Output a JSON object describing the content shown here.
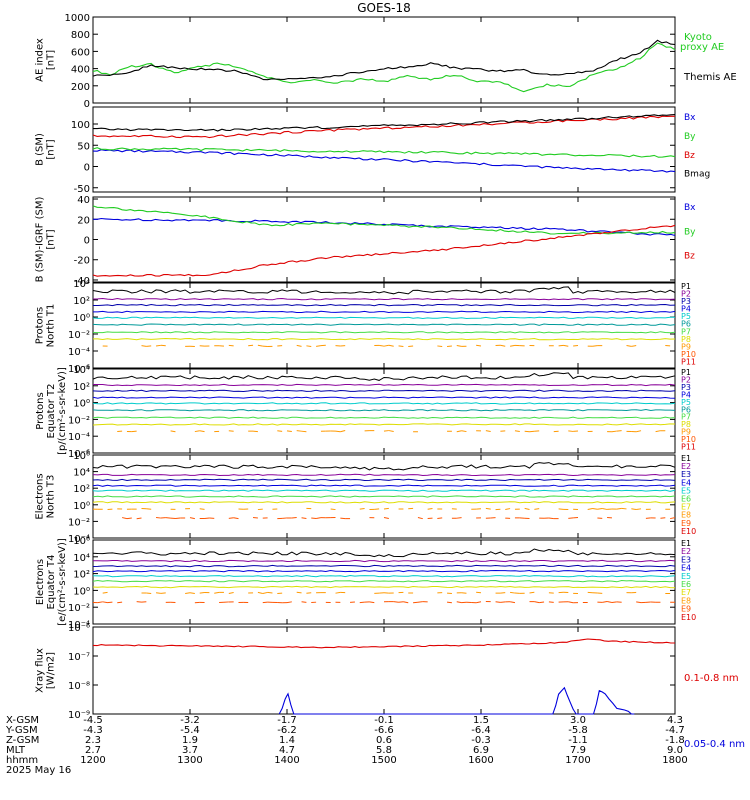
{
  "title": "GOES-18",
  "x_ticks": [
    "1200",
    "1300",
    "1400",
    "1500",
    "1600",
    "1700",
    "1800"
  ],
  "orbit_table": {
    "rows": [
      {
        "label": "X-GSM",
        "values": [
          "-4.5",
          "-3.2",
          "-1.7",
          "-0.1",
          "1.5",
          "3.0",
          "4.3"
        ]
      },
      {
        "label": "Y-GSM",
        "values": [
          "-4.3",
          "-5.4",
          "-6.2",
          "-6.6",
          "-6.4",
          "-5.8",
          "-4.7"
        ]
      },
      {
        "label": "Z-GSM",
        "values": [
          "2.3",
          "1.9",
          "1.4",
          "0.6",
          "-0.3",
          "-1.1",
          "-1.8"
        ]
      },
      {
        "label": "MLT",
        "values": [
          "2.7",
          "3.7",
          "4.7",
          "5.8",
          "6.9",
          "7.9",
          "9.0"
        ]
      },
      {
        "label": "hhmm",
        "values": [
          "1200",
          "1300",
          "1400",
          "1500",
          "1600",
          "1700",
          "1800"
        ]
      }
    ],
    "date": "2025 May 16"
  },
  "colors": {
    "black": "#000000",
    "blue": "#0000dd",
    "green": "#22cc22",
    "red": "#dd0000",
    "purple": "#880099",
    "navy": "#0000aa",
    "cyan": "#00cccc",
    "teal": "#009999",
    "lime": "#44dd44",
    "yellow": "#dddd00",
    "orange": "#ff9900",
    "orangered": "#ff5500"
  },
  "chart_data": [
    {
      "id": "ae",
      "type": "line",
      "ylabel": [
        "AE index",
        "[nT]"
      ],
      "y_ticks": [
        "0",
        "200",
        "400",
        "600",
        "800",
        "1000"
      ],
      "ylim": [
        0,
        1000
      ],
      "series": [
        {
          "name": "Kyoto proxy AE",
          "color": "#22cc22",
          "points": [
            [
              0,
              380
            ],
            [
              0.03,
              330
            ],
            [
              0.06,
              420
            ],
            [
              0.1,
              450
            ],
            [
              0.14,
              350
            ],
            [
              0.18,
              420
            ],
            [
              0.22,
              460
            ],
            [
              0.26,
              390
            ],
            [
              0.3,
              300
            ],
            [
              0.34,
              230
            ],
            [
              0.38,
              270
            ],
            [
              0.42,
              230
            ],
            [
              0.46,
              280
            ],
            [
              0.5,
              250
            ],
            [
              0.54,
              310
            ],
            [
              0.58,
              270
            ],
            [
              0.62,
              330
            ],
            [
              0.66,
              250
            ],
            [
              0.7,
              250
            ],
            [
              0.74,
              130
            ],
            [
              0.78,
              210
            ],
            [
              0.82,
              200
            ],
            [
              0.86,
              330
            ],
            [
              0.9,
              400
            ],
            [
              0.94,
              520
            ],
            [
              0.97,
              700
            ],
            [
              1.0,
              620
            ]
          ]
        },
        {
          "name": "Themis AE",
          "color": "#000000",
          "points": [
            [
              0,
              320
            ],
            [
              0.05,
              330
            ],
            [
              0.1,
              440
            ],
            [
              0.15,
              400
            ],
            [
              0.2,
              390
            ],
            [
              0.25,
              370
            ],
            [
              0.3,
              270
            ],
            [
              0.35,
              280
            ],
            [
              0.4,
              300
            ],
            [
              0.45,
              350
            ],
            [
              0.5,
              400
            ],
            [
              0.55,
              420
            ],
            [
              0.58,
              460
            ],
            [
              0.62,
              410
            ],
            [
              0.66,
              390
            ],
            [
              0.7,
              370
            ],
            [
              0.74,
              380
            ],
            [
              0.78,
              330
            ],
            [
              0.82,
              340
            ],
            [
              0.86,
              380
            ],
            [
              0.9,
              500
            ],
            [
              0.94,
              580
            ],
            [
              0.97,
              720
            ],
            [
              1.0,
              680
            ]
          ]
        }
      ]
    },
    {
      "id": "bsm",
      "type": "line",
      "ylabel": [
        "B (SM)",
        "[nT]"
      ],
      "y_ticks": [
        "-50",
        "0",
        "50",
        "100"
      ],
      "ylim": [
        -60,
        140
      ],
      "series": [
        {
          "name": "Bx",
          "color": "#0000dd",
          "points": [
            [
              0,
              38
            ],
            [
              0.2,
              33
            ],
            [
              0.4,
              22
            ],
            [
              0.6,
              10
            ],
            [
              0.8,
              -3
            ],
            [
              1.0,
              -12
            ]
          ]
        },
        {
          "name": "By",
          "color": "#22cc22",
          "points": [
            [
              0,
              42
            ],
            [
              0.2,
              40
            ],
            [
              0.4,
              36
            ],
            [
              0.6,
              33
            ],
            [
              0.8,
              28
            ],
            [
              1.0,
              23
            ]
          ]
        },
        {
          "name": "Bz",
          "color": "#dd0000",
          "points": [
            [
              0,
              72
            ],
            [
              0.2,
              70
            ],
            [
              0.4,
              85
            ],
            [
              0.6,
              95
            ],
            [
              0.8,
              107
            ],
            [
              1.0,
              118
            ]
          ]
        },
        {
          "name": "Bmag",
          "color": "#000000",
          "points": [
            [
              0,
              88
            ],
            [
              0.2,
              85
            ],
            [
              0.4,
              92
            ],
            [
              0.6,
              100
            ],
            [
              0.8,
              110
            ],
            [
              1.0,
              122
            ]
          ]
        }
      ]
    },
    {
      "id": "bsmigrf",
      "type": "line",
      "ylabel": [
        "B (SM)-IGRF (SM)",
        "[nT]"
      ],
      "y_ticks": [
        "-40",
        "-20",
        "0",
        "20",
        "40"
      ],
      "ylim": [
        -42,
        42
      ],
      "series": [
        {
          "name": "Bx",
          "color": "#0000dd",
          "points": [
            [
              0,
              20
            ],
            [
              0.2,
              19
            ],
            [
              0.4,
              17
            ],
            [
              0.6,
              13
            ],
            [
              0.8,
              10
            ],
            [
              1.0,
              4
            ]
          ]
        },
        {
          "name": "By",
          "color": "#22cc22",
          "points": [
            [
              0,
              33
            ],
            [
              0.2,
              22
            ],
            [
              0.3,
              14
            ],
            [
              0.4,
              16
            ],
            [
              0.6,
              12
            ],
            [
              0.8,
              6
            ],
            [
              1.0,
              7
            ]
          ]
        },
        {
          "name": "Bz",
          "color": "#dd0000",
          "points": [
            [
              0,
              -36
            ],
            [
              0.2,
              -35
            ],
            [
              0.3,
              -25
            ],
            [
              0.4,
              -18
            ],
            [
              0.6,
              -10
            ],
            [
              0.8,
              2
            ],
            [
              1.0,
              14
            ]
          ]
        }
      ]
    },
    {
      "id": "pn",
      "type": "line",
      "log": true,
      "ylabel": [
        "Protons",
        "North T1"
      ],
      "y_ticks": [
        "10⁻⁶",
        "10⁻⁴",
        "10⁻²",
        "10⁰",
        "10²",
        "10⁴"
      ],
      "ylim_exp": [
        -6,
        4
      ],
      "labels": [
        "P1",
        "P2",
        "P3",
        "P4",
        "P5",
        "P6",
        "P7",
        "P8",
        "P9",
        "P10",
        "P11"
      ],
      "levels_exp": [
        3.0,
        2.1,
        1.4,
        0.6,
        -0.1,
        -0.9,
        -1.8,
        -2.6,
        -3.4,
        null,
        null
      ],
      "label_colors": [
        "#000000",
        "#880099",
        "#0000aa",
        "#0000dd",
        "#00cccc",
        "#009999",
        "#44dd44",
        "#dddd00",
        "#ff9900",
        "#ff5500",
        "#dd0000"
      ]
    },
    {
      "id": "pe",
      "type": "line",
      "log": true,
      "ylabel": [
        "Protons",
        "Equator T2",
        "[p/(cm²-s-sr-keV)]"
      ],
      "y_ticks": [
        "10⁻⁶",
        "10⁻⁴",
        "10⁻²",
        "10⁰",
        "10²",
        "10⁴"
      ],
      "ylim_exp": [
        -6,
        4
      ],
      "labels": [
        "P1",
        "P2",
        "P3",
        "P4",
        "P5",
        "P6",
        "P7",
        "P8",
        "P9",
        "P10",
        "P11"
      ],
      "levels_exp": [
        3.0,
        2.1,
        1.4,
        0.6,
        -0.1,
        -0.9,
        -1.8,
        -2.6,
        -3.4,
        null,
        null
      ],
      "label_colors": [
        "#000000",
        "#880099",
        "#0000aa",
        "#0000dd",
        "#00cccc",
        "#009999",
        "#44dd44",
        "#dddd00",
        "#ff9900",
        "#ff5500",
        "#dd0000"
      ]
    },
    {
      "id": "en",
      "type": "line",
      "log": true,
      "ylabel": [
        "Electrons",
        "North T3"
      ],
      "y_ticks": [
        "10⁻⁴",
        "10⁻²",
        "10⁰",
        "10²",
        "10⁴",
        "10⁶"
      ],
      "ylim_exp": [
        -4,
        6
      ],
      "labels": [
        "E1",
        "E2",
        "E3",
        "E4",
        "E5",
        "E6",
        "E7",
        "E8",
        "E9",
        "E10"
      ],
      "levels_exp": [
        4.6,
        3.6,
        3.0,
        2.3,
        1.7,
        1.0,
        0.3,
        -0.5,
        -1.6,
        null
      ],
      "label_colors": [
        "#000000",
        "#880099",
        "#0000aa",
        "#0000dd",
        "#00cccc",
        "#44dd44",
        "#dddd00",
        "#ff9900",
        "#ff5500",
        "#dd0000"
      ]
    },
    {
      "id": "ee",
      "type": "line",
      "log": true,
      "ylabel": [
        "Electrons",
        "Equator T4",
        "[e/(cm²-s-sr-keV)]"
      ],
      "y_ticks": [
        "10⁻⁴",
        "10⁻²",
        "10⁰",
        "10²",
        "10⁴",
        "10⁶"
      ],
      "ylim_exp": [
        -4,
        6
      ],
      "labels": [
        "E1",
        "E2",
        "E3",
        "E4",
        "E5",
        "E6",
        "E7",
        "E8",
        "E9",
        "E10"
      ],
      "levels_exp": [
        4.4,
        3.5,
        2.9,
        2.3,
        1.7,
        1.1,
        0.4,
        -0.3,
        -1.4,
        null
      ],
      "label_colors": [
        "#000000",
        "#880099",
        "#0000aa",
        "#0000dd",
        "#00cccc",
        "#44dd44",
        "#dddd00",
        "#ff9900",
        "#ff5500",
        "#dd0000"
      ]
    },
    {
      "id": "xray",
      "type": "line",
      "log": true,
      "ylabel": [
        "Xray flux",
        "[W/m2]"
      ],
      "y_ticks": [
        "10⁻⁹",
        "10⁻⁸",
        "10⁻⁷",
        "10⁻⁶"
      ],
      "ylim_exp": [
        -9,
        -6
      ],
      "series": [
        {
          "name": "0.1-0.8 nm",
          "color": "#dd0000",
          "points": [
            [
              0,
              -6.62
            ],
            [
              0.2,
              -6.66
            ],
            [
              0.4,
              -6.7
            ],
            [
              0.6,
              -6.65
            ],
            [
              0.8,
              -6.55
            ],
            [
              0.85,
              -6.42
            ],
            [
              0.9,
              -6.5
            ],
            [
              1.0,
              -6.55
            ]
          ]
        },
        {
          "name": "0.05-0.4 nm",
          "color": "#0000dd",
          "points": [
            [
              0.32,
              -9.1
            ],
            [
              0.33,
              -8.5
            ],
            [
              0.335,
              -8.3
            ],
            [
              0.345,
              -9.1
            ],
            [
              0.79,
              -9.1
            ],
            [
              0.8,
              -8.3
            ],
            [
              0.81,
              -8.1
            ],
            [
              0.82,
              -8.6
            ],
            [
              0.83,
              -9.1
            ],
            [
              0.86,
              -9.1
            ],
            [
              0.87,
              -8.2
            ],
            [
              0.88,
              -8.3
            ],
            [
              0.9,
              -8.8
            ],
            [
              0.92,
              -8.9
            ],
            [
              0.93,
              -9.1
            ]
          ]
        }
      ]
    }
  ]
}
